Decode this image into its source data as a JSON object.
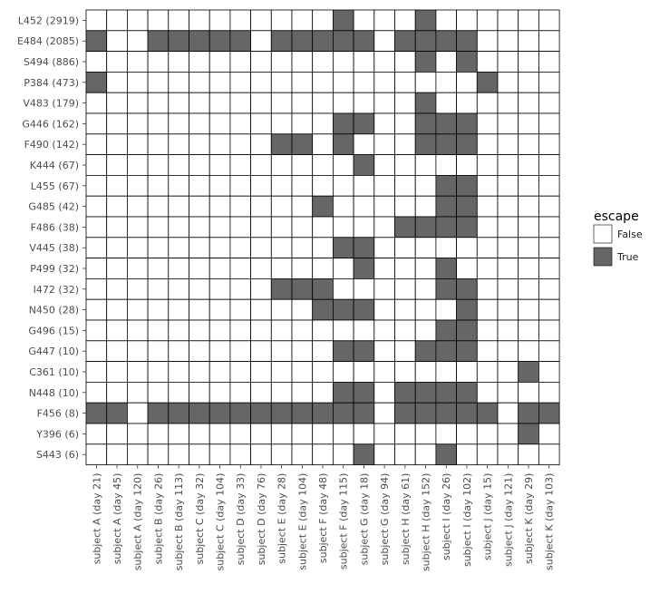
{
  "chart_data": {
    "type": "heatmap",
    "title": "",
    "xlabel": "",
    "ylabel": "",
    "rows": [
      "L452 (2919)",
      "E484 (2085)",
      "S494 (886)",
      "P384 (473)",
      "V483 (179)",
      "G446 (162)",
      "F490 (142)",
      "K444 (67)",
      "L455 (67)",
      "G485 (42)",
      "F486 (38)",
      "V445 (38)",
      "P499 (32)",
      "I472 (32)",
      "N450 (28)",
      "G496 (15)",
      "G447 (10)",
      "C361 (10)",
      "N448 (10)",
      "F456 (8)",
      "Y396 (6)",
      "S443 (6)"
    ],
    "columns": [
      "subject A (day 21)",
      "subject A (day 45)",
      "subject A (day 120)",
      "subject B (day 26)",
      "subject B (day 113)",
      "subject C (day 32)",
      "subject C (day 104)",
      "subject D (day 33)",
      "subject D (day 76)",
      "subject E (day 28)",
      "subject E (day 104)",
      "subject F (day 48)",
      "subject F (day 115)",
      "subject G (day 18)",
      "subject G (day 94)",
      "subject H (day 61)",
      "subject H (day 152)",
      "subject I (day 26)",
      "subject I (day 102)",
      "subject J (day 15)",
      "subject J (day 121)",
      "subject K (day 29)",
      "subject K (day 103)"
    ],
    "values": [
      [
        0,
        0,
        0,
        0,
        0,
        0,
        0,
        0,
        0,
        0,
        0,
        0,
        1,
        0,
        0,
        0,
        1,
        0,
        0,
        0,
        0,
        0,
        0
      ],
      [
        1,
        0,
        0,
        1,
        1,
        1,
        1,
        1,
        0,
        1,
        1,
        1,
        1,
        1,
        0,
        1,
        1,
        1,
        1,
        0,
        0,
        0,
        0
      ],
      [
        0,
        0,
        0,
        0,
        0,
        0,
        0,
        0,
        0,
        0,
        0,
        0,
        0,
        0,
        0,
        0,
        1,
        0,
        1,
        0,
        0,
        0,
        0
      ],
      [
        1,
        0,
        0,
        0,
        0,
        0,
        0,
        0,
        0,
        0,
        0,
        0,
        0,
        0,
        0,
        0,
        0,
        0,
        0,
        1,
        0,
        0,
        0
      ],
      [
        0,
        0,
        0,
        0,
        0,
        0,
        0,
        0,
        0,
        0,
        0,
        0,
        0,
        0,
        0,
        0,
        1,
        0,
        0,
        0,
        0,
        0,
        0
      ],
      [
        0,
        0,
        0,
        0,
        0,
        0,
        0,
        0,
        0,
        0,
        0,
        0,
        1,
        1,
        0,
        0,
        1,
        1,
        1,
        0,
        0,
        0,
        0
      ],
      [
        0,
        0,
        0,
        0,
        0,
        0,
        0,
        0,
        0,
        1,
        1,
        0,
        1,
        0,
        0,
        0,
        1,
        1,
        1,
        0,
        0,
        0,
        0
      ],
      [
        0,
        0,
        0,
        0,
        0,
        0,
        0,
        0,
        0,
        0,
        0,
        0,
        0,
        1,
        0,
        0,
        0,
        0,
        0,
        0,
        0,
        0,
        0
      ],
      [
        0,
        0,
        0,
        0,
        0,
        0,
        0,
        0,
        0,
        0,
        0,
        0,
        0,
        0,
        0,
        0,
        0,
        1,
        1,
        0,
        0,
        0,
        0
      ],
      [
        0,
        0,
        0,
        0,
        0,
        0,
        0,
        0,
        0,
        0,
        0,
        1,
        0,
        0,
        0,
        0,
        0,
        1,
        1,
        0,
        0,
        0,
        0
      ],
      [
        0,
        0,
        0,
        0,
        0,
        0,
        0,
        0,
        0,
        0,
        0,
        0,
        0,
        0,
        0,
        1,
        1,
        1,
        1,
        0,
        0,
        0,
        0
      ],
      [
        0,
        0,
        0,
        0,
        0,
        0,
        0,
        0,
        0,
        0,
        0,
        0,
        1,
        1,
        0,
        0,
        0,
        0,
        0,
        0,
        0,
        0,
        0
      ],
      [
        0,
        0,
        0,
        0,
        0,
        0,
        0,
        0,
        0,
        0,
        0,
        0,
        0,
        1,
        0,
        0,
        0,
        1,
        0,
        0,
        0,
        0,
        0
      ],
      [
        0,
        0,
        0,
        0,
        0,
        0,
        0,
        0,
        0,
        1,
        1,
        1,
        0,
        0,
        0,
        0,
        0,
        1,
        1,
        0,
        0,
        0,
        0
      ],
      [
        0,
        0,
        0,
        0,
        0,
        0,
        0,
        0,
        0,
        0,
        0,
        1,
        1,
        1,
        0,
        0,
        0,
        0,
        1,
        0,
        0,
        0,
        0
      ],
      [
        0,
        0,
        0,
        0,
        0,
        0,
        0,
        0,
        0,
        0,
        0,
        0,
        0,
        0,
        0,
        0,
        0,
        1,
        1,
        0,
        0,
        0,
        0
      ],
      [
        0,
        0,
        0,
        0,
        0,
        0,
        0,
        0,
        0,
        0,
        0,
        0,
        1,
        1,
        0,
        0,
        1,
        1,
        1,
        0,
        0,
        0,
        0
      ],
      [
        0,
        0,
        0,
        0,
        0,
        0,
        0,
        0,
        0,
        0,
        0,
        0,
        0,
        0,
        0,
        0,
        0,
        0,
        0,
        0,
        0,
        1,
        0
      ],
      [
        0,
        0,
        0,
        0,
        0,
        0,
        0,
        0,
        0,
        0,
        0,
        0,
        1,
        1,
        0,
        1,
        1,
        1,
        1,
        0,
        0,
        0,
        0
      ],
      [
        1,
        1,
        0,
        1,
        1,
        1,
        1,
        1,
        1,
        1,
        1,
        1,
        1,
        1,
        0,
        1,
        1,
        1,
        1,
        1,
        0,
        1,
        1
      ],
      [
        0,
        0,
        0,
        0,
        0,
        0,
        0,
        0,
        0,
        0,
        0,
        0,
        0,
        0,
        0,
        0,
        0,
        0,
        0,
        0,
        0,
        1,
        0
      ],
      [
        0,
        0,
        0,
        0,
        0,
        0,
        0,
        0,
        0,
        0,
        0,
        0,
        0,
        1,
        0,
        0,
        0,
        1,
        0,
        0,
        0,
        0,
        0
      ]
    ],
    "legend": {
      "title": "escape",
      "placement": "right",
      "entries": [
        {
          "label": "False",
          "color": "#ffffff"
        },
        {
          "label": "True",
          "color": "#666666"
        }
      ]
    },
    "colors": {
      "true_fill": "#666666",
      "false_fill": "#ffffff",
      "cell_border": "#000000"
    },
    "grid": false
  }
}
